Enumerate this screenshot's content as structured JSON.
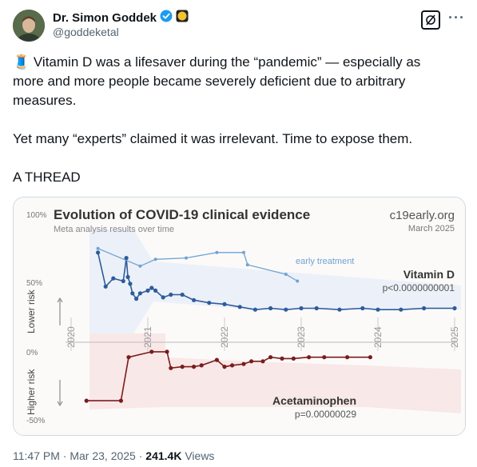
{
  "author": {
    "display_name": "Dr. Simon Goddek",
    "handle": "@goddeketal",
    "verified_badge_color": "#1d9bf0",
    "affiliate_badge_color": "#f2c230"
  },
  "tweet": {
    "line1": "🧵 Vitamin D was a lifesaver during the “pandemic” — especially as",
    "line2": "more and more people became severely deficient due to arbitrary",
    "line3": "measures.",
    "line4": "Yet many “experts” claimed it was irrelevant. Time to expose them.",
    "line5": "A THREAD"
  },
  "meta": {
    "time": "11:47 PM",
    "date": "Mar 23, 2025",
    "views_count": "241.4K",
    "views_label": "Views",
    "sep": "·"
  },
  "chart_data": {
    "type": "line",
    "title": "Evolution of COVID-19 clinical evidence",
    "subtitle": "Meta analysis results over time",
    "brand": "c19early.org",
    "brand_date": "March 2025",
    "y_ticks": [
      "100%",
      "50%",
      "0%",
      "-50%"
    ],
    "lower_risk_label": "Lower risk",
    "higher_risk_label": "Higher risk",
    "x_ticks": [
      "2020",
      "2021",
      "2022",
      "2023",
      "2024",
      "2025"
    ],
    "series": [
      {
        "name": "Vitamin D",
        "note": "p<0.0000000001",
        "color": "#2e5c9a",
        "x": [
          2020.35,
          2020.45,
          2020.55,
          2020.68,
          2020.72,
          2020.74,
          2020.77,
          2020.8,
          2020.85,
          2020.9,
          2021.0,
          2021.05,
          2021.1,
          2021.2,
          2021.3,
          2021.45,
          2021.6,
          2021.8,
          2022.0,
          2022.2,
          2022.4,
          2022.6,
          2022.8,
          2023.0,
          2023.2,
          2023.5,
          2023.8,
          2024.0,
          2024.3,
          2024.6,
          2025.0
        ],
        "y": [
          66,
          41,
          47,
          45,
          62,
          48,
          43,
          36,
          32,
          36,
          38,
          40,
          38,
          33,
          35,
          35,
          31,
          29,
          28,
          26,
          24,
          25,
          24,
          25,
          25,
          24,
          25,
          24,
          24,
          25,
          25
        ]
      },
      {
        "name": "early treatment",
        "color": "#6fa3d2",
        "x": [
          2020.35,
          2020.9,
          2021.1,
          2021.5,
          2021.9,
          2022.25,
          2022.3,
          2022.8,
          2022.95
        ],
        "y": [
          69,
          56,
          61,
          62,
          66,
          66,
          57,
          50,
          45
        ]
      },
      {
        "name": "Acetaminophen",
        "note": "p=0.00000029",
        "color": "#7a1c1c",
        "x": [
          2020.2,
          2020.65,
          2020.75,
          2021.05,
          2021.25,
          2021.3,
          2021.45,
          2021.6,
          2021.7,
          2021.9,
          2022.0,
          2022.1,
          2022.25,
          2022.35,
          2022.5,
          2022.6,
          2022.75,
          2022.9,
          2023.1,
          2023.3,
          2023.6,
          2023.9
        ],
        "y": [
          -43,
          -43,
          -11,
          -7,
          -7,
          -19,
          -18,
          -18,
          -17,
          -13,
          -18,
          -17,
          -16,
          -14,
          -14,
          -11,
          -12,
          -12,
          -11,
          -11,
          -11,
          -11
        ]
      }
    ]
  }
}
